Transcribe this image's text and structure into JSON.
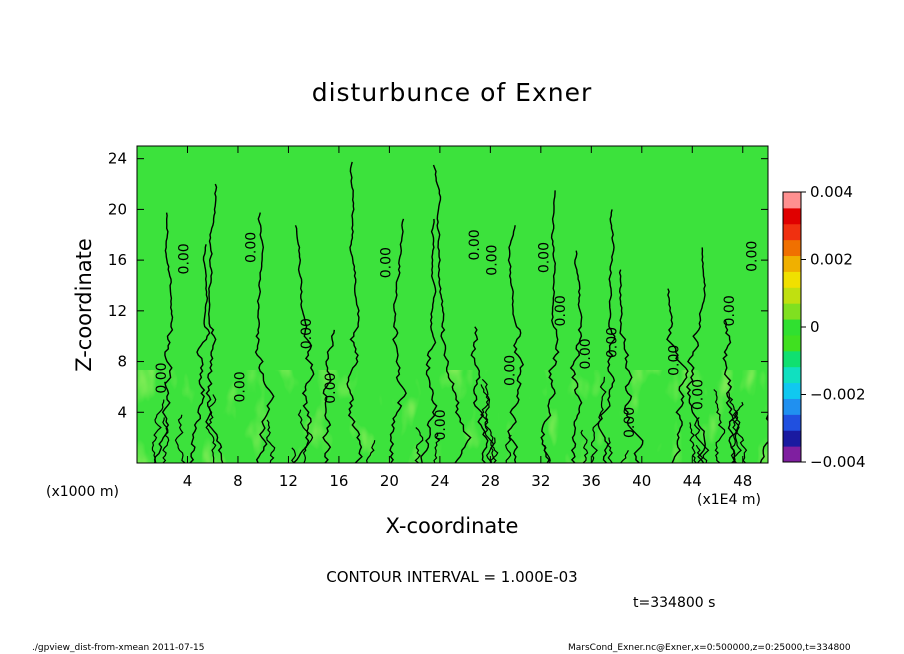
{
  "title": "disturbunce of Exner",
  "x_axis": {
    "label": "X-coordinate",
    "unit_note": "(x1000 m)",
    "scale_note": "(x1E4 m)"
  },
  "y_axis": {
    "label": "Z-coordinate"
  },
  "contour_interval": "CONTOUR INTERVAL = 1.000E-03",
  "time_label": "t=334800   s",
  "footer": {
    "left": "./gpview_dist-from-xmean   2011-07-15",
    "right": "MarsCond_Exner.nc@Exner,x=0:500000,z=0:25000,t=334800"
  },
  "chart_data": {
    "type": "heatmap",
    "title": "disturbunce of Exner",
    "xlabel": "X-coordinate",
    "ylabel": "Z-coordinate",
    "xlim": [
      0,
      50
    ],
    "ylim": [
      0,
      25
    ],
    "x_ticks": [
      4,
      8,
      12,
      16,
      20,
      24,
      28,
      32,
      36,
      40,
      44,
      48
    ],
    "x_tick_labels": [
      "4",
      "8",
      "12",
      "16",
      "20",
      "24",
      "28",
      "32",
      "36",
      "40",
      "44",
      "48"
    ],
    "y_ticks": [
      4,
      8,
      12,
      16,
      20,
      24
    ],
    "y_tick_labels": [
      "4",
      "8",
      "12",
      "16",
      "20",
      "24"
    ],
    "colorbar": {
      "range": [
        -0.004,
        0.004
      ],
      "tick_values": [
        0.004,
        0.002,
        0,
        -0.002,
        -0.004
      ],
      "tick_labels": [
        "0.004",
        "0.002",
        "0",
        "−0.002",
        "−0.004"
      ],
      "colors": [
        "#7f1fa0",
        "#1a1aa0",
        "#2050e0",
        "#2090f0",
        "#10c8f0",
        "#10e0c0",
        "#10e070",
        "#40e020",
        "#30e030",
        "#80e020",
        "#c0e010",
        "#f0e000",
        "#f0b000",
        "#f07000",
        "#f03010",
        "#e00000",
        "#ff9090"
      ]
    },
    "background_value": 0,
    "contour_interval": 0.001,
    "contour_labels": [
      {
        "text": "0.00",
        "x": 4.1,
        "z": 16.1
      },
      {
        "text": "0.00",
        "x": 9.4,
        "z": 17.0
      },
      {
        "text": "0.00",
        "x": 2.3,
        "z": 6.7
      },
      {
        "text": "0.00",
        "x": 8.5,
        "z": 6.0
      },
      {
        "text": "0.00",
        "x": 13.8,
        "z": 10.2
      },
      {
        "text": "0.00",
        "x": 15.7,
        "z": 5.9
      },
      {
        "text": "0.00",
        "x": 20.1,
        "z": 15.8
      },
      {
        "text": "0.00",
        "x": 24.4,
        "z": 3.0
      },
      {
        "text": "0.00",
        "x": 27.1,
        "z": 17.2
      },
      {
        "text": "0.00",
        "x": 28.5,
        "z": 16.0
      },
      {
        "text": "0.00",
        "x": 29.9,
        "z": 7.3
      },
      {
        "text": "0.00",
        "x": 32.6,
        "z": 16.2
      },
      {
        "text": "0.00",
        "x": 33.9,
        "z": 12.0
      },
      {
        "text": "0.00",
        "x": 35.9,
        "z": 8.6
      },
      {
        "text": "0.00",
        "x": 38.0,
        "z": 9.5
      },
      {
        "text": "0.00",
        "x": 39.4,
        "z": 3.2
      },
      {
        "text": "0.00",
        "x": 42.9,
        "z": 8.1
      },
      {
        "text": "0.00",
        "x": 44.8,
        "z": 5.4
      },
      {
        "text": "0.00",
        "x": 47.3,
        "z": 12.0
      },
      {
        "text": "0.00",
        "x": 49.1,
        "z": 16.3
      }
    ]
  }
}
